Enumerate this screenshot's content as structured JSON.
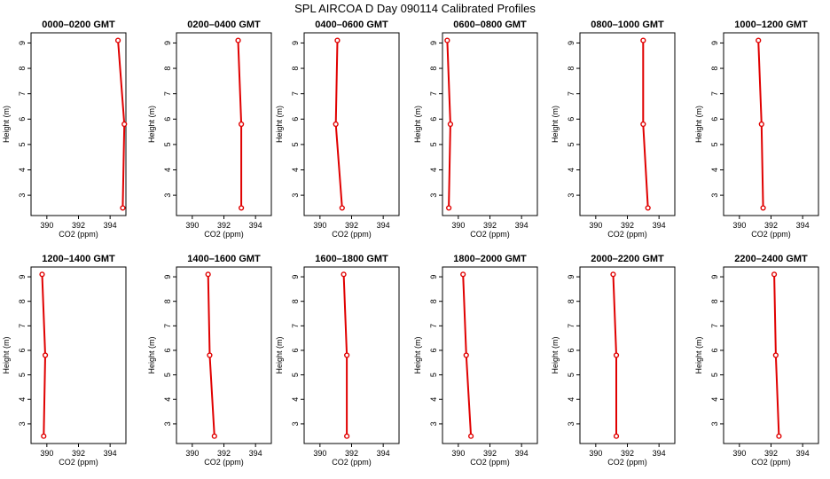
{
  "title": "SPL AIRCOA D  Day 090114  Calibrated Profiles",
  "colors": {
    "series": "#e00000",
    "axis": "#000000",
    "background": "#ffffff"
  },
  "chart_data": {
    "type": "line",
    "xlabel": "CO2 (ppm)",
    "ylabel": "Height (m)",
    "xlim": [
      389,
      395
    ],
    "ylim": [
      2.2,
      9.4
    ],
    "xticks": [
      390,
      392,
      394
    ],
    "yticks": [
      3,
      4,
      5,
      6,
      7,
      8,
      9
    ],
    "grid": false,
    "panels": [
      {
        "title": "0000–0200 GMT",
        "x": [
          394.5,
          394.9,
          394.8
        ],
        "y": [
          9.1,
          5.8,
          2.5
        ]
      },
      {
        "title": "0200–0400 GMT",
        "x": [
          392.9,
          393.1,
          393.1
        ],
        "y": [
          9.1,
          5.8,
          2.5
        ]
      },
      {
        "title": "0400–0600 GMT",
        "x": [
          391.1,
          391.0,
          391.4
        ],
        "y": [
          9.1,
          5.8,
          2.5
        ]
      },
      {
        "title": "0600–0800 GMT",
        "x": [
          389.3,
          389.5,
          389.4
        ],
        "y": [
          9.1,
          5.8,
          2.5
        ]
      },
      {
        "title": "0800–1000 GMT",
        "x": [
          393.0,
          393.0,
          393.3
        ],
        "y": [
          9.1,
          5.8,
          2.5
        ]
      },
      {
        "title": "1000–1200 GMT",
        "x": [
          391.2,
          391.4,
          391.5
        ],
        "y": [
          9.1,
          5.8,
          2.5
        ]
      },
      {
        "title": "1200–1400 GMT",
        "x": [
          389.7,
          389.9,
          389.8
        ],
        "y": [
          9.1,
          5.8,
          2.5
        ]
      },
      {
        "title": "1400–1600 GMT",
        "x": [
          391.0,
          391.1,
          391.4
        ],
        "y": [
          9.1,
          5.8,
          2.5
        ]
      },
      {
        "title": "1600–1800 GMT",
        "x": [
          391.5,
          391.7,
          391.7
        ],
        "y": [
          9.1,
          5.8,
          2.5
        ]
      },
      {
        "title": "1800–2000 GMT",
        "x": [
          390.3,
          390.5,
          390.8
        ],
        "y": [
          9.1,
          5.8,
          2.5
        ]
      },
      {
        "title": "2000–2200 GMT",
        "x": [
          391.1,
          391.3,
          391.3
        ],
        "y": [
          9.1,
          5.8,
          2.5
        ]
      },
      {
        "title": "2200–2400 GMT",
        "x": [
          392.2,
          392.3,
          392.5
        ],
        "y": [
          9.1,
          5.8,
          2.5
        ]
      }
    ]
  }
}
